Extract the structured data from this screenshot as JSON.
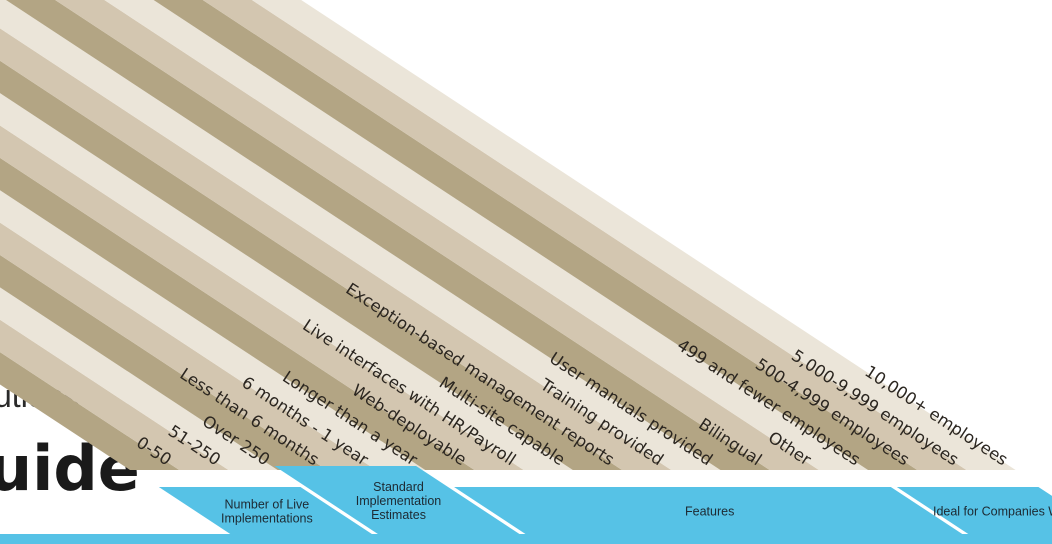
{
  "title": {
    "line1": "utions",
    "line2": "uide"
  },
  "columns": [
    {
      "label": "0-50",
      "shade": "dark"
    },
    {
      "label": "51-250",
      "shade": "mid"
    },
    {
      "label": "Over 250",
      "shade": "light"
    },
    {
      "label": "Less than 6 months",
      "shade": "dark"
    },
    {
      "label": "6 months - 1 year",
      "shade": "mid"
    },
    {
      "label": "Longer than a year",
      "shade": "light"
    },
    {
      "label": "Web-deployable",
      "shade": "dark"
    },
    {
      "label": "Live interfaces with HR/Payroll",
      "shade": "mid"
    },
    {
      "label": "Multi-site capable",
      "shade": "light"
    },
    {
      "label": "Exception-based management reports",
      "shade": "dark"
    },
    {
      "label": "Training provided",
      "shade": "mid"
    },
    {
      "label": "User manuals provided",
      "shade": "light"
    },
    {
      "label": "Bilingual",
      "shade": "dark"
    },
    {
      "label": "Other",
      "shade": "mid"
    },
    {
      "label": "499 and fewer employees",
      "shade": "light"
    },
    {
      "label": "500-4,999 employees",
      "shade": "dark"
    },
    {
      "label": "5,000-9,999 employees",
      "shade": "mid"
    },
    {
      "label": "10,000+ employees",
      "shade": "light"
    }
  ],
  "groups": [
    {
      "lines": [
        "Number of Live",
        "Implementations"
      ]
    },
    {
      "lines": [
        "Standard",
        "Implementation",
        "Estimates"
      ]
    },
    {
      "lines": [
        "Features"
      ]
    },
    {
      "lines": [
        "Ideal for Companies With:"
      ]
    }
  ],
  "colors": {
    "dark": "#b3a584",
    "mid": "#d3c6b0",
    "light": "#ebe5d9",
    "accent": "#56c2e6"
  }
}
